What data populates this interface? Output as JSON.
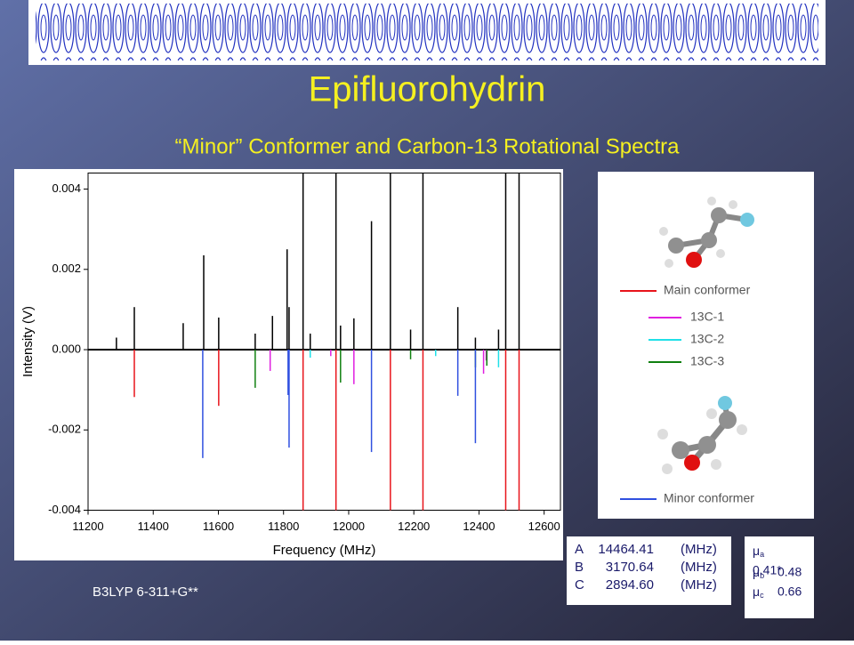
{
  "slide": {
    "title": "Epifluorohydrin",
    "subtitle": "“Minor” Conformer and Carbon-13 Rotational Spectra",
    "footnote": "B3LYP 6-311+G**",
    "constants": [
      {
        "label": "A",
        "value": "14464.41",
        "unit": "(MHz)"
      },
      {
        "label": "B",
        "value": "3170.64",
        "unit": "(MHz)"
      },
      {
        "label": "C",
        "value": "2894.60",
        "unit": "(MHz)"
      }
    ],
    "dipoles": [
      {
        "symbol": "μ",
        "sub": "a",
        "value": "0.41*"
      },
      {
        "symbol": "μ",
        "sub": "b",
        "value": "0.48"
      },
      {
        "symbol": "μ",
        "sub": "c",
        "value": "0.66"
      }
    ]
  },
  "chart_data": {
    "type": "stick",
    "xlabel": "Frequency (MHz)",
    "ylabel": "Intensity (V)",
    "xlim": [
      11200,
      12650
    ],
    "ylim": [
      -0.004,
      0.0044
    ],
    "xticks": [
      11200,
      11400,
      11600,
      11800,
      12000,
      12200,
      12400,
      12600
    ],
    "yticks": [
      -0.004,
      -0.002,
      {
        "value": 0,
        "label": "0.000"
      },
      0.002,
      0.004
    ],
    "experimental": {
      "color": "#000000",
      "x": [
        11287,
        11342,
        11492,
        11555,
        11601,
        11713,
        11766,
        11811,
        11817,
        11860,
        11882,
        11961,
        11975,
        12016,
        12070,
        12128,
        12190,
        12228,
        12335,
        12389,
        12460,
        12482,
        12523
      ],
      "values": [
        0.0003,
        0.00106,
        0.00066,
        0.00235,
        0.0008,
        0.0004,
        0.00084,
        0.0025,
        0.00106,
        0.0044,
        0.0004,
        0.0044,
        0.0006,
        0.00078,
        0.0032,
        0.0044,
        0.0005,
        0.0044,
        0.00106,
        0.0003,
        0.0005,
        0.0044,
        0.0044
      ]
    },
    "series": [
      {
        "name": "Main conformer",
        "color": "#e8141b",
        "x": [
          11342,
          11601,
          11860,
          11961,
          12128,
          12228,
          12482,
          12523
        ],
        "values": [
          -0.00118,
          -0.0014,
          -0.004,
          -0.004,
          -0.004,
          -0.004,
          -0.004,
          -0.004
        ]
      },
      {
        "name": "13C-1",
        "color": "#e020e0",
        "x": [
          11759,
          11945,
          12016,
          12414,
          12422
        ],
        "values": [
          -0.00053,
          -0.00016,
          -0.00086,
          -0.0006,
          -0.00027
        ]
      },
      {
        "name": "13C-2",
        "color": "#20e0e8",
        "x": [
          11882,
          12267,
          12460
        ],
        "values": [
          -0.0002,
          -0.00016,
          -0.00044
        ]
      },
      {
        "name": "13C-3",
        "color": "#108010",
        "x": [
          11713,
          11975,
          12190,
          12389,
          12424
        ],
        "values": [
          -0.00095,
          -0.00082,
          -0.00024,
          -0.00044,
          -0.0004
        ]
      },
      {
        "name": "Minor conformer",
        "color": "#3050e0",
        "x": [
          11552,
          11814,
          11817,
          12070,
          12335,
          12389
        ],
        "values": [
          -0.0027,
          -0.00113,
          -0.00244,
          -0.00255,
          -0.00115,
          -0.00233
        ]
      }
    ]
  }
}
